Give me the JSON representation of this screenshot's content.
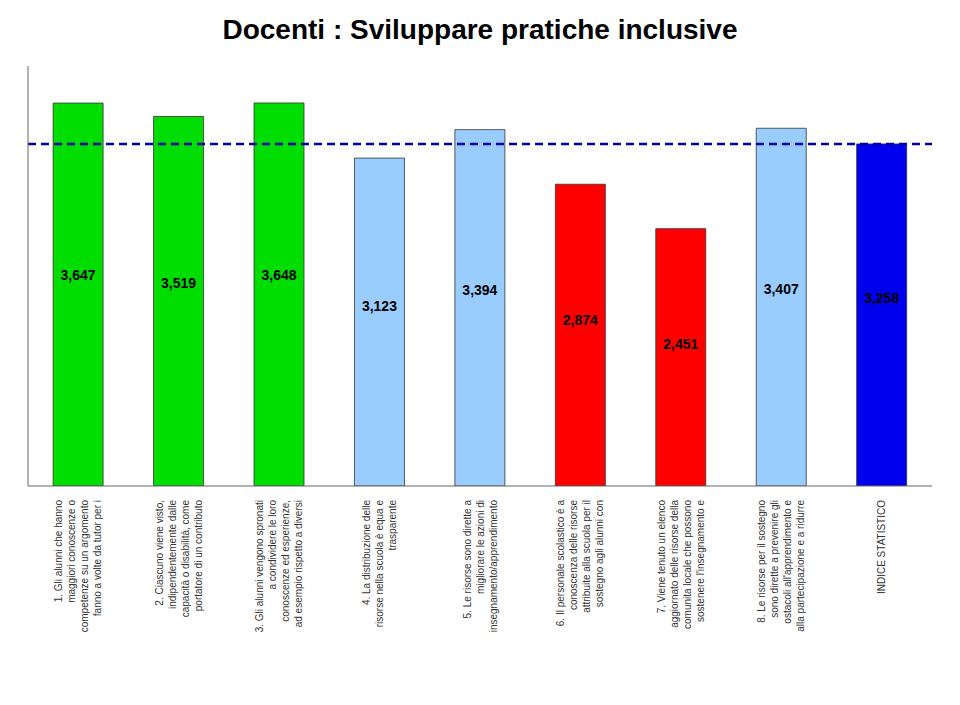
{
  "chart_data": {
    "type": "bar",
    "title": "Docenti : Sviluppare pratiche inclusive",
    "categories": [
      "1. Gli alunni che hanno\nmaggiori conoscenze o\ncompetenze su un argomento\nfanno a volte da tutor per i",
      "2. Ciascuno viene visto,\nindipendentemente dalle\ncapacità o disabilità, come\nportatore di un contributo",
      "3. Gli alunni vengono spronati\na condividere le loro\nconoscenze ed esperienze,\nad esempio rispetto a diversi",
      "4. La distribuzione delle\nrisorse nella scuola è equa e\ntrasparente",
      "5. Le risorse sono dirette a\nmigliorare le azioni di\ninsegnamento/apprendimento",
      "6. Il personale scolastico è a\nconoscenza delle risorse\nattribuite alla scuola per il\nsostegno agli alunni con",
      "7. Viene tenuto un elenco\naggiornato delle risorse della\ncomunita locale che possono\nsostenere l'insegnamento e",
      "8. Le risorse per il sostegno\nsono dirette a prevenire gli\nostacoli all'apprendimento e\nalla partecipazione e a ridurre",
      "INDICE STATISTICO"
    ],
    "values": [
      3.647,
      3.519,
      3.648,
      3.123,
      3.394,
      2.874,
      2.451,
      3.407,
      3.258
    ],
    "value_labels": [
      "3,647",
      "3,519",
      "3,648",
      "3,123",
      "3,394",
      "2,874",
      "2,451",
      "3,407",
      "3,258"
    ],
    "data_labels": true,
    "colors": [
      "#00dd00",
      "#00dd00",
      "#00dd00",
      "#99ccff",
      "#99ccff",
      "#ff0000",
      "#ff0000",
      "#99ccff",
      "#0000ee"
    ],
    "reference_line": {
      "value": 3.258,
      "color": "#0000aa"
    },
    "ylim": [
      0,
      4.0
    ],
    "grid": false,
    "tick_labels": "x"
  }
}
